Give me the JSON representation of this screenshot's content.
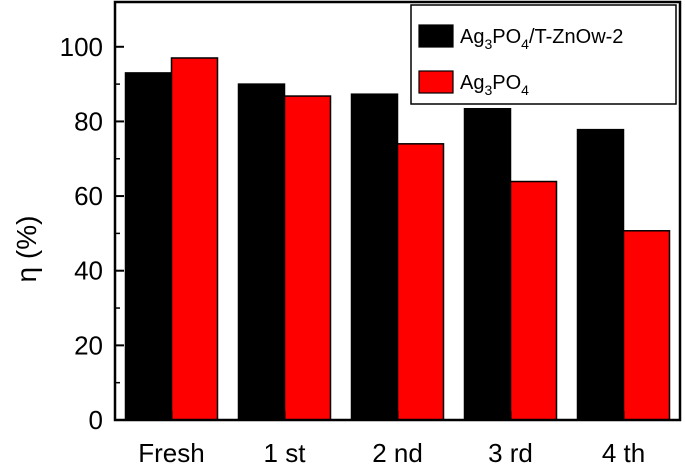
{
  "chart_data": {
    "type": "bar",
    "categories": [
      "Fresh",
      "1 st",
      "2 nd",
      "3 rd",
      "4 th"
    ],
    "series": [
      {
        "name": "Ag3PO4/T-ZnOw-2",
        "legend_parts": {
          "base": "Ag",
          "sub1": "3",
          "mid": "PO",
          "sub2": "4",
          "tail": "/T-ZnOw-2"
        },
        "color": "#000000",
        "values": [
          93,
          90,
          87.3,
          83.4,
          77.8
        ]
      },
      {
        "name": "Ag3PO4",
        "legend_parts": {
          "base": "Ag",
          "sub1": "3",
          "mid": "PO",
          "sub2": "4",
          "tail": ""
        },
        "color": "#ff0000",
        "values": [
          97,
          86.8,
          74,
          63.9,
          50.7
        ]
      }
    ],
    "xlabel": "",
    "ylabel": "η (%)",
    "ylim": [
      0,
      112
    ],
    "yticks": [
      0,
      20,
      40,
      60,
      80,
      100
    ],
    "grid": false,
    "legend_position": "top-right"
  }
}
